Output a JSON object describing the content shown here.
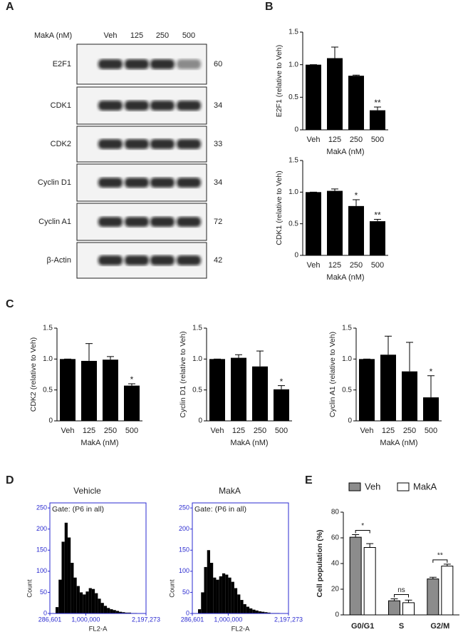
{
  "panel_labels": [
    "A",
    "B",
    "C",
    "D",
    "E"
  ],
  "blot": {
    "treatment_label": "MakA (nM)",
    "lanes": [
      "Veh",
      "125",
      "250",
      "500"
    ],
    "rows": [
      {
        "protein": "E2F1",
        "size": 60
      },
      {
        "protein": "CDK1",
        "size": 34
      },
      {
        "protein": "CDK2",
        "size": 33
      },
      {
        "protein": "Cyclin D1",
        "size": 34
      },
      {
        "protein": "Cyclin A1",
        "size": 72
      },
      {
        "protein": "β-Actin",
        "size": 42
      }
    ]
  },
  "chart_data": [
    {
      "type": "bar",
      "ylabel": "E2F1 (relative to Veh)",
      "xlabel": "MakA (nM)",
      "categories": [
        "Veh",
        "125",
        "250",
        "500"
      ],
      "values": [
        1.0,
        1.1,
        0.83,
        0.3
      ],
      "errors": [
        0,
        0.17,
        0.01,
        0.05
      ],
      "significance": [
        null,
        null,
        null,
        "**"
      ],
      "color": "#000000",
      "ylim": [
        0,
        1.5
      ],
      "yticks": [
        0,
        0.5,
        {
          "value": 1,
          "label": "1.0"
        },
        1.5
      ]
    },
    {
      "type": "bar",
      "ylabel": "CDK1 (relative to Veh)",
      "xlabel": "MakA (nM)",
      "categories": [
        "Veh",
        "125",
        "250",
        "500"
      ],
      "values": [
        1.0,
        1.02,
        0.78,
        0.54
      ],
      "errors": [
        0,
        0.03,
        0.1,
        0.03
      ],
      "significance": [
        null,
        null,
        "*",
        "**"
      ],
      "color": "#000000",
      "ylim": [
        0,
        1.5
      ],
      "yticks": [
        0,
        0.5,
        {
          "value": 1,
          "label": "1.0"
        },
        1.5
      ]
    },
    {
      "type": "bar",
      "ylabel": "CDK2 (relative to Veh)",
      "xlabel": "MakA (nM)",
      "categories": [
        "Veh",
        "125",
        "250",
        "500"
      ],
      "values": [
        1.0,
        0.97,
        0.99,
        0.57
      ],
      "errors": [
        0,
        0.28,
        0.05,
        0.03
      ],
      "significance": [
        null,
        null,
        null,
        "*"
      ],
      "color": "#000000",
      "ylim": [
        0,
        1.5
      ],
      "yticks": [
        0,
        0.5,
        {
          "value": 1,
          "label": "1.0"
        },
        1.5
      ]
    },
    {
      "type": "bar",
      "ylabel": "Cyclin D1 (relative to Veh)",
      "xlabel": "MakA (nM)",
      "categories": [
        "Veh",
        "125",
        "250",
        "500"
      ],
      "values": [
        1.0,
        1.02,
        0.88,
        0.51
      ],
      "errors": [
        0,
        0.05,
        0.25,
        0.06
      ],
      "significance": [
        null,
        null,
        null,
        "*"
      ],
      "color": "#000000",
      "ylim": [
        0,
        1.5
      ],
      "yticks": [
        0,
        0.5,
        {
          "value": 1,
          "label": "1.0"
        },
        1.5
      ]
    },
    {
      "type": "bar",
      "ylabel": "Cyclin A1 (relative to Veh)",
      "xlabel": "MakA (nM)",
      "categories": [
        "Veh",
        "125",
        "250",
        "500"
      ],
      "values": [
        1.0,
        1.07,
        0.8,
        0.38
      ],
      "errors": [
        0,
        0.3,
        0.47,
        0.35
      ],
      "significance": [
        null,
        null,
        null,
        "*"
      ],
      "color": "#000000",
      "ylim": [
        0,
        1.5
      ],
      "yticks": [
        0,
        0.5,
        {
          "value": 1,
          "label": "1.0"
        },
        1.5
      ]
    },
    {
      "type": "histogram",
      "title": "Vehicle",
      "gate": "Gate: (P6 in all)",
      "xlabel": "FL2-A",
      "ylabel": "Count",
      "color": "#000000",
      "bins": [
        400000,
        460000,
        520000,
        580000,
        640000,
        700000,
        760000,
        820000,
        880000,
        940000,
        1000000,
        1060000,
        1120000,
        1180000,
        1240000,
        1300000,
        1360000,
        1420000,
        1480000,
        1540000,
        1600000,
        1660000,
        1720000,
        1780000,
        1840000,
        1900000,
        1960000,
        2020000,
        2080000,
        2140000
      ],
      "counts": [
        15,
        80,
        170,
        215,
        180,
        120,
        85,
        65,
        50,
        45,
        52,
        60,
        58,
        48,
        35,
        25,
        18,
        13,
        10,
        8,
        6,
        4,
        3,
        2,
        2,
        1,
        1,
        0,
        0
      ],
      "xlim": [
        286601,
        2197273
      ],
      "xticks": [
        {
          "value": 286601,
          "label": "286,601"
        },
        {
          "value": 1000000,
          "label": "1,000,000"
        },
        {
          "value": 2197273,
          "label": "2,197,273"
        }
      ],
      "ylim": [
        0,
        262
      ],
      "yticks": [
        0,
        50,
        100,
        150,
        200,
        250
      ]
    },
    {
      "type": "histogram",
      "title": "MakA",
      "gate": "Gate: (P6 in all)",
      "xlabel": "FL2-A",
      "ylabel": "Count",
      "color": "#000000",
      "bins": [
        400000,
        460000,
        520000,
        580000,
        640000,
        700000,
        760000,
        820000,
        880000,
        940000,
        1000000,
        1060000,
        1120000,
        1180000,
        1240000,
        1300000,
        1360000,
        1420000,
        1480000,
        1540000,
        1600000,
        1660000,
        1720000,
        1780000,
        1840000,
        1900000,
        1960000,
        2020000,
        2080000,
        2140000
      ],
      "counts": [
        10,
        50,
        110,
        150,
        120,
        85,
        80,
        88,
        95,
        92,
        85,
        75,
        60,
        45,
        32,
        22,
        16,
        12,
        9,
        7,
        5,
        4,
        3,
        2,
        1,
        1,
        1,
        0,
        0
      ],
      "xlim": [
        286601,
        2197273
      ],
      "xticks": [
        {
          "value": 286601,
          "label": "286,601"
        },
        {
          "value": 1000000,
          "label": "1,000,000"
        },
        {
          "value": 2197273,
          "label": "2,197,273"
        }
      ],
      "ylim": [
        0,
        262
      ],
      "yticks": [
        0,
        50,
        100,
        150,
        200,
        250
      ]
    },
    {
      "type": "grouped_bar",
      "ylabel": "Cell population (%)",
      "categories": [
        "G0/G1",
        "S",
        "G2/M"
      ],
      "series": [
        {
          "name": "Veh",
          "color": "#8c8c8c",
          "values": [
            60.5,
            11,
            28
          ],
          "errors": [
            2,
            1.5,
            1.3
          ]
        },
        {
          "name": "MakA",
          "color": "#ffffff",
          "values": [
            52.5,
            9.5,
            38
          ],
          "errors": [
            3,
            2,
            1.5
          ]
        }
      ],
      "significance": [
        "*",
        "ns",
        "**"
      ],
      "ylim": [
        0,
        80
      ],
      "yticks": [
        0,
        20,
        40,
        60,
        80
      ]
    }
  ]
}
